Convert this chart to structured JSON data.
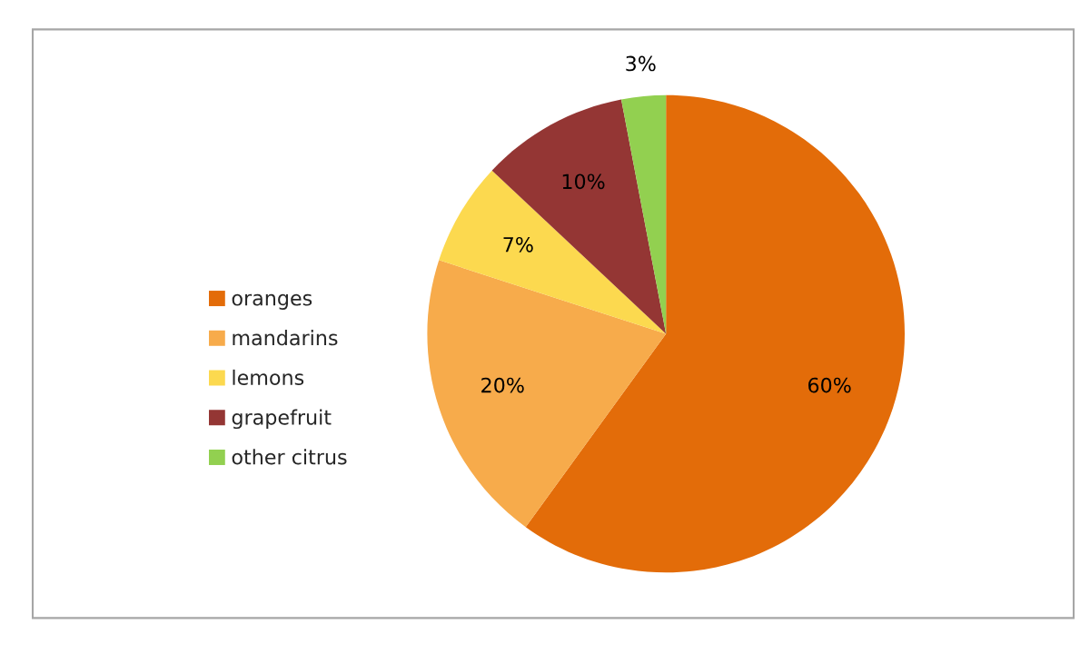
{
  "chart_data": {
    "type": "pie",
    "categories": [
      "oranges",
      "mandarins",
      "lemons",
      "grapefruit",
      "other citrus"
    ],
    "values": [
      60,
      20,
      7,
      10,
      3
    ],
    "colors": [
      "#e36c09",
      "#f7ab4b",
      "#fcd94f",
      "#943634",
      "#92d050"
    ],
    "value_labels": [
      "60%",
      "20%",
      "7%",
      "10%",
      "3%"
    ],
    "legend": "left"
  }
}
